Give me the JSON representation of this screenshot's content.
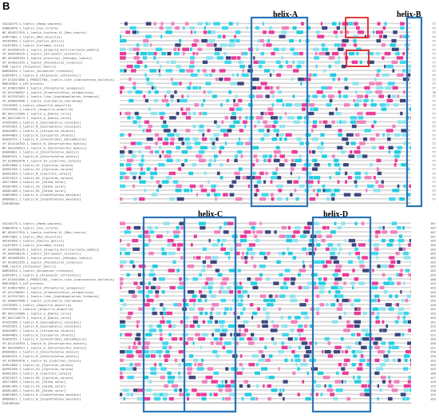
{
  "panel_letter": "B",
  "helices": [
    {
      "label": "helix-A"
    },
    {
      "label": "helix-B"
    },
    {
      "label": "helix-C"
    },
    {
      "label": "helix-D"
    }
  ],
  "sequences": [
    "EAI40179.1_leptin_[Homo_sapiens]",
    "AAB03678.1_leptin_[Sus_scrofa]",
    "NP_001027355.1_leptin_isoform_X1_[Bos_taurus]",
    "AIM72802.1_leptin_[Mus_musculus]",
    "ARC02099.1_leptin_[Gallus_gallus]",
    "CUL67039.1_leptin_[Columba_livia]",
    "XP_042980135.1_leptin_[Elgaria_multicarinata_webbii]",
    "XP_008760216.1_leptin_[Alligator_sinensis]",
    "NP_001089183.1_leptin_precursor_[Xenopus_laevis]",
    "XP_043301355.1_leptin_[Pelodiscus_sinensis]",
    "RAN_leptin_[Acipenser_baerii]",
    "BAM28554.1_leptin_[Acipenser_ruthenus]",
    "QJD54871.1_leptin_A_[Acipenser_schrenckii]",
    "XP_015207086.1_PREDICTED__leptin-like_[Lepisosteus_oculatus]",
    "MHK19303.1_LEP_protein",
    "XP_039017084.1_leptin_[Polypterus_senegalus]",
    "XP_031780367.1_leptin_[Erpetoichthys_calabaricus]",
    "XP_015767461.1_leptin-like_[Lepidogalaxias_formosus]",
    "XP_006007898.1_leptin_[Latimeria_chalumnae]",
    "CEX19395.1_leptin_[Anguilla_anguilla]",
    "CEX19396.1_leptin2_[Anguilla_anguilla]",
    "NP_001122089.1_leptin_a_[Danio_rerio]",
    "NP_001128573.1_leptin_b_[Danio_rerio]",
    "AFU55260.1_leptin_A_[Epinephelus_coioides]",
    "AFU55261.1_leptin_B_[Epinephelus_coioides]",
    "AHA44062.1_leptin_A_[Siniperca_chuatsi]",
    "AHA44063.1_leptin_B_[Siniperca_chuatsi]",
    "AGU28752.1_leptin_A_[Oreochromis_mossambicus]",
    "XP_021418703.1_leptin_B_[Oncorhynchus_mykiss]",
    "NP_001269913.1_leptin_A_[Oncorhynchus_mykiss]",
    "BAG09032.1_leptin_A_[Oncorhynchus_mykiss]",
    "BAG09191.1_leptin_B_[Oncorhynchus_mykiss]",
    "XP_018981870.1_leptin_A1_[Cyprinus_carpio]",
    "AGR24906.1_leptin_A1_[Cyprinus_carpio]",
    "QEH91938.1_leptin_A2_[Cyprinus_carpio]",
    "QEH91939.1_leptin_B_[Cyprinus_carpio]",
    "ACD22612.1_leptin_B2_[Cyprinus_carpio]",
    "ADI77098.1_leptin_A1_[Salmo_salar]",
    "ADG81489.1_leptin_A2_[Salmo_salar]",
    "ADG81488.1_leptin_B1_[Salmo_salar]",
    "AGW25603.1_leptin_A_[Scophthalmus_maximus]",
    "AMQ98011.1_leptin_B_[Scophthalmus_maximus]"
  ],
  "top_positions": [
    "77",
    "77",
    "77",
    "77",
    "77",
    "77",
    "77",
    "77",
    "77",
    "77",
    "77",
    "77",
    "77",
    "77",
    "77",
    "77",
    "76",
    "77",
    "77",
    "77",
    "77",
    "77",
    "77",
    "77",
    "77",
    "77",
    "77",
    "77",
    "77",
    "77",
    "77",
    "77",
    "77",
    "77",
    "77",
    "77",
    "77",
    "77",
    "77",
    "77",
    "77",
    "77"
  ],
  "bottom_positions": [
    "167",
    "167",
    "167",
    "167",
    "165",
    "165",
    "165",
    "165",
    "165",
    "165",
    "165",
    "165",
    "165",
    "166",
    "163",
    "163",
    "165",
    "165",
    "165",
    "158",
    "162",
    "163",
    "163",
    "161",
    "153",
    "153",
    "152",
    "163",
    "150",
    "151",
    "150",
    "150",
    "163",
    "163",
    "163",
    "166",
    "157",
    "159",
    "155",
    "158",
    "153",
    "163"
  ],
  "consensus_label": "Consensus"
}
